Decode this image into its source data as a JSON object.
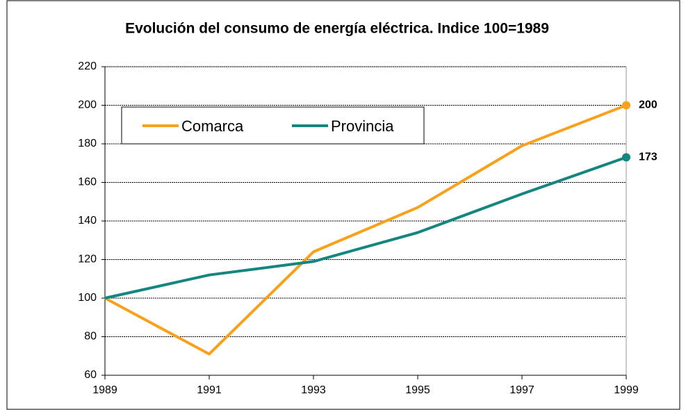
{
  "chart_data": {
    "type": "line",
    "title": "Evolución del consumo de energía eléctrica. Indice 100=1989",
    "x": [
      1989,
      1991,
      1993,
      1995,
      1997,
      1999
    ],
    "series": [
      {
        "name": "Comarca",
        "color": "#f9a11b",
        "values": [
          100,
          71,
          124,
          147,
          179,
          200
        ]
      },
      {
        "name": "Provincia",
        "color": "#158580",
        "values": [
          100,
          112,
          119,
          134,
          154,
          173
        ]
      }
    ],
    "xlim": [
      1989,
      1999
    ],
    "xticks": [
      1989,
      1991,
      1993,
      1995,
      1997,
      1999
    ],
    "ylim": [
      60,
      220
    ],
    "yticks": [
      60,
      80,
      100,
      120,
      140,
      160,
      180,
      200,
      220
    ],
    "grid": true,
    "legend": "top-left"
  }
}
